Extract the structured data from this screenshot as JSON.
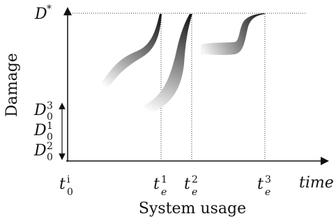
{
  "diagram": {
    "y_axis_label": "Damage",
    "x_axis_label": "System usage",
    "x_axis_end_label": "time",
    "damage_threshold": {
      "symbol": "D",
      "sup": "*"
    },
    "initial_damage_levels": [
      {
        "symbol": "D",
        "sub": "0",
        "sup": "3"
      },
      {
        "symbol": "D",
        "sub": "0",
        "sup": "1"
      },
      {
        "symbol": "D",
        "sub": "0",
        "sup": "2"
      }
    ],
    "time_marks": [
      {
        "symbol": "t",
        "sub": "0",
        "sup": "i"
      },
      {
        "symbol": "t",
        "sub": "e",
        "sup": "1"
      },
      {
        "symbol": "t",
        "sub": "e",
        "sup": "2"
      },
      {
        "symbol": "t",
        "sub": "e",
        "sup": "3"
      }
    ]
  }
}
